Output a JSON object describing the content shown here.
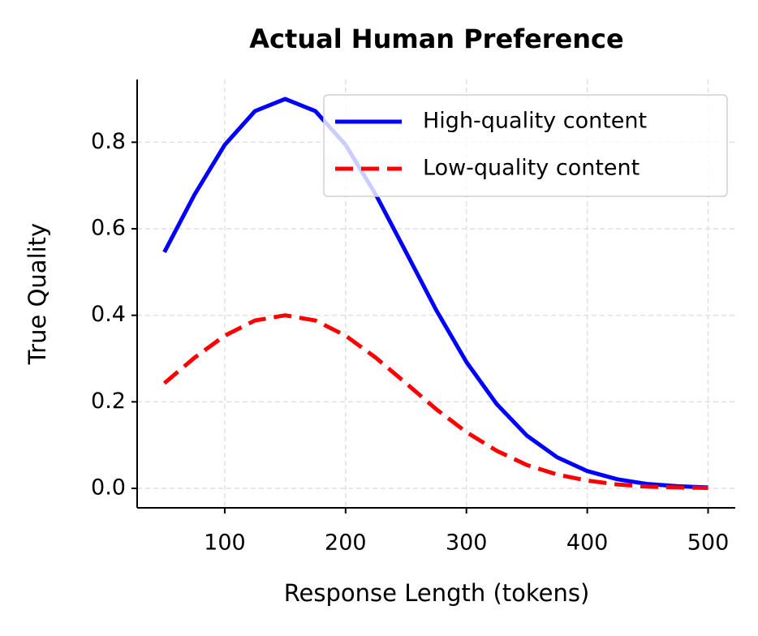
{
  "chart_data": {
    "type": "line",
    "title": "Actual Human Preference",
    "x_label": "Response Length (tokens)",
    "y_label": "True Quality",
    "x": [
      50,
      75,
      100,
      125,
      150,
      175,
      200,
      225,
      250,
      275,
      300,
      325,
      350,
      375,
      400,
      425,
      450,
      475,
      500
    ],
    "series": [
      {
        "name": "High-quality content",
        "color": "#0000ff",
        "linestyle": "solid",
        "values": [
          0.546,
          0.679,
          0.794,
          0.872,
          0.9,
          0.872,
          0.794,
          0.679,
          0.546,
          0.412,
          0.292,
          0.195,
          0.122,
          0.072,
          0.04,
          0.021,
          0.01,
          0.005,
          0.002
        ]
      },
      {
        "name": "Low-quality content",
        "color": "#ff0000",
        "linestyle": "dashed",
        "values": [
          0.243,
          0.302,
          0.353,
          0.388,
          0.4,
          0.388,
          0.353,
          0.302,
          0.243,
          0.183,
          0.13,
          0.087,
          0.054,
          0.032,
          0.018,
          0.009,
          0.004,
          0.002,
          0.001
        ]
      }
    ],
    "xlim": [
      27.5,
      522.5
    ],
    "ylim": [
      -0.045,
      0.945
    ],
    "xticks": [
      100,
      200,
      300,
      400,
      500
    ],
    "yticks": [
      {
        "value": 0,
        "label": "0.0"
      },
      0.2,
      0.4,
      0.6,
      0.8
    ],
    "grid": true,
    "legend": "upper right"
  }
}
